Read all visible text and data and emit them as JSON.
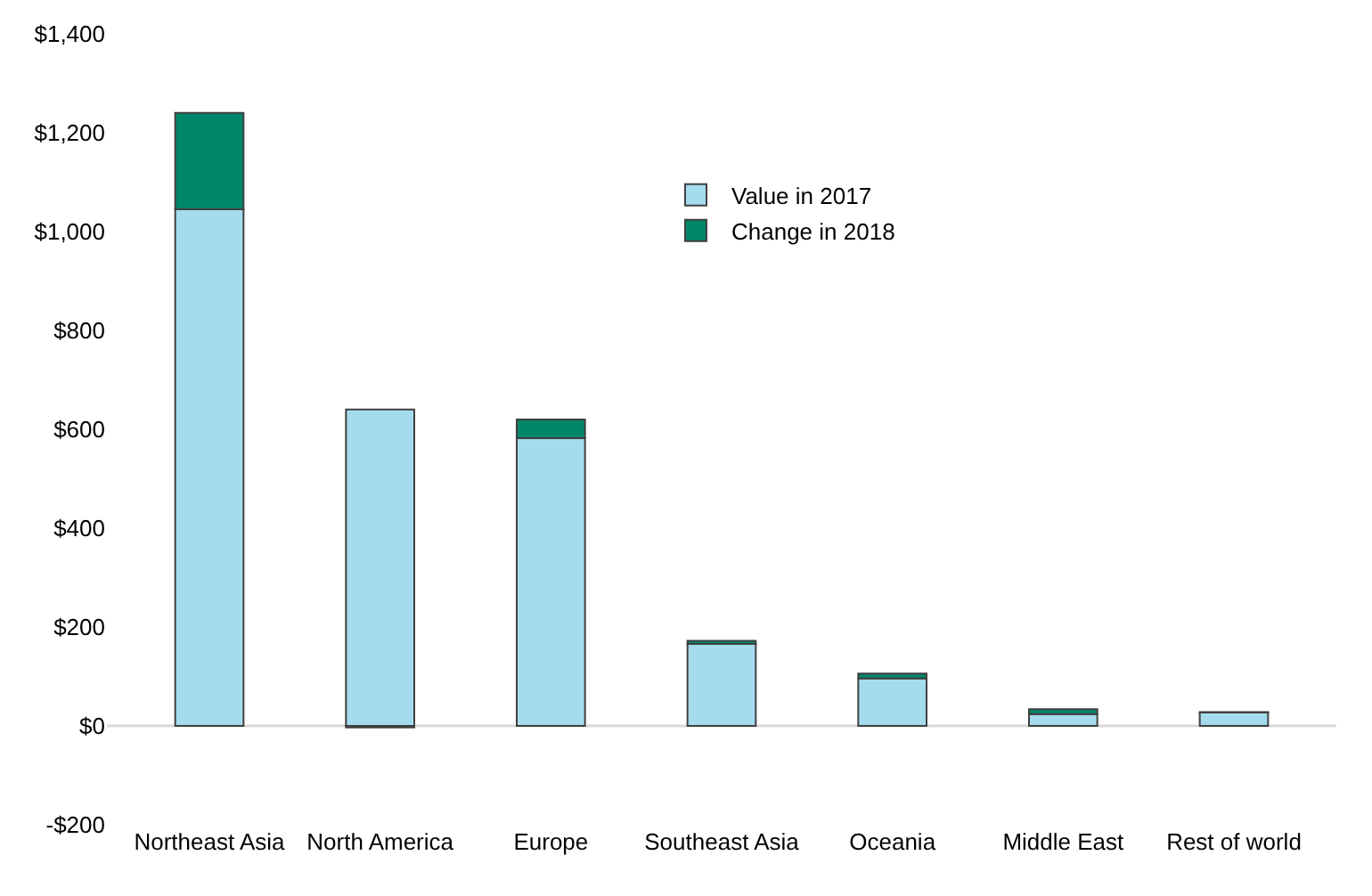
{
  "chart_data": {
    "type": "bar",
    "stacked": true,
    "categories": [
      "Northeast Asia",
      "North America",
      "Europe",
      "Southeast Asia",
      "Oceania",
      "Middle East",
      "Rest of world"
    ],
    "series": [
      {
        "name": "Value in 2017",
        "color": "#a5dced",
        "values": [
          1045,
          640,
          582,
          166,
          96,
          24,
          27
        ]
      },
      {
        "name": "Change in 2018",
        "color": "#00866a",
        "values": [
          195,
          -3,
          38,
          6,
          10,
          10,
          1
        ]
      }
    ],
    "ylim": [
      -200,
      1400
    ],
    "yticks": [
      {
        "value": -200,
        "label": "-$200"
      },
      {
        "value": 0,
        "label": "$0"
      },
      {
        "value": 200,
        "label": "$200"
      },
      {
        "value": 400,
        "label": "$400"
      },
      {
        "value": 600,
        "label": "$600"
      },
      {
        "value": 800,
        "label": "$800"
      },
      {
        "value": 1000,
        "label": "$1,000"
      },
      {
        "value": 1200,
        "label": "$1,200"
      },
      {
        "value": 1400,
        "label": "$1,400"
      }
    ],
    "ref_lines": [
      {
        "axis": "y",
        "value": 0,
        "color": "#d9d9d9"
      }
    ],
    "legend": "top"
  }
}
